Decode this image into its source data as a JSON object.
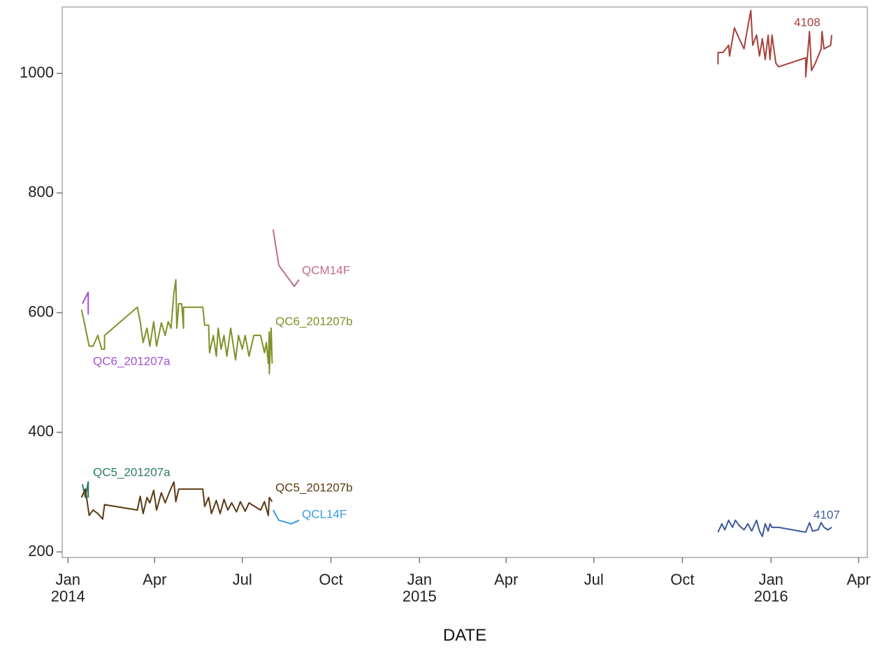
{
  "chart_data": {
    "type": "line",
    "x_label": "DATE",
    "xlim": [
      "2013-12-26",
      "2016-04-10"
    ],
    "xticks": [
      {
        "value": "2014-01-01",
        "label": "Jan\n2014"
      },
      {
        "value": "2014-04-01",
        "label": "Apr"
      },
      {
        "value": "2014-07-01",
        "label": "Jul"
      },
      {
        "value": "2014-10-01",
        "label": "Oct"
      },
      {
        "value": "2015-01-01",
        "label": "Jan\n2015"
      },
      {
        "value": "2015-04-01",
        "label": "Apr"
      },
      {
        "value": "2015-07-01",
        "label": "Jul"
      },
      {
        "value": "2015-10-01",
        "label": "Oct"
      },
      {
        "value": "2016-01-01",
        "label": "Jan\n2016"
      },
      {
        "value": "2016-04-01",
        "label": "Apr"
      }
    ],
    "ylim": [
      190.7,
      1111
    ],
    "yticks": [
      200,
      400,
      600,
      800,
      1000
    ],
    "grid": false,
    "series": [
      {
        "name": "QC6_201207a",
        "color": "#a64fd1",
        "x": [
          "2014-01-16",
          "2014-01-22",
          "2014-01-22"
        ],
        "values": [
          615,
          634,
          597
        ]
      },
      {
        "name": "QC6_201207b",
        "color": "#7f9128",
        "x": [
          "2014-01-15",
          "2014-01-17",
          "2014-01-23",
          "2014-01-27",
          "2014-02-01",
          "2014-02-05",
          "2014-02-08",
          "2014-02-08",
          "2014-03-14",
          "2014-03-17",
          "2014-03-20",
          "2014-03-24",
          "2014-03-27",
          "2014-03-31",
          "2014-04-03",
          "2014-04-08",
          "2014-04-12",
          "2014-04-15",
          "2014-04-18",
          "2014-04-21",
          "2014-04-23",
          "2014-04-24",
          "2014-04-26",
          "2014-04-29",
          "2014-05-01",
          "2014-05-01",
          "2014-05-21",
          "2014-05-23",
          "2014-05-27",
          "2014-05-28",
          "2014-06-01",
          "2014-06-04",
          "2014-06-06",
          "2014-06-09",
          "2014-06-12",
          "2014-06-15",
          "2014-06-19",
          "2014-06-24",
          "2014-06-27",
          "2014-07-01",
          "2014-07-04",
          "2014-07-08",
          "2014-07-13",
          "2014-07-20",
          "2014-07-24",
          "2014-07-26",
          "2014-07-28",
          "2014-07-29",
          "2014-07-29",
          "2014-07-31",
          "2014-08-01"
        ],
        "values": [
          605,
          591,
          544,
          544,
          562,
          539,
          539,
          562,
          609,
          585,
          550,
          574,
          544,
          585,
          544,
          583,
          562,
          585,
          574,
          632,
          655,
          574,
          615,
          615,
          574,
          609,
          609,
          579,
          579,
          533,
          562,
          527,
          574,
          539,
          562,
          527,
          574,
          521,
          562,
          539,
          562,
          527,
          562,
          562,
          533,
          550,
          515,
          568,
          498,
          574,
          515
        ]
      },
      {
        "name": "QCM14F",
        "color": "#c06c8f",
        "x": [
          "2014-08-02",
          "2014-08-08",
          "2014-08-24",
          "2014-08-29"
        ],
        "values": [
          739,
          679,
          644,
          655
        ]
      },
      {
        "name": "QC5_201207a",
        "color": "#2a7a6a",
        "x": [
          "2014-01-16",
          "2014-01-19",
          "2014-01-22",
          "2014-01-22"
        ],
        "values": [
          313,
          291,
          317,
          291
        ]
      },
      {
        "name": "QC5_201207b",
        "color": "#5a3a12",
        "x": [
          "2014-01-15",
          "2014-01-19",
          "2014-01-23",
          "2014-01-27",
          "2014-02-01",
          "2014-02-06",
          "2014-02-08",
          "2014-03-14",
          "2014-03-17",
          "2014-03-20",
          "2014-03-24",
          "2014-03-27",
          "2014-03-31",
          "2014-04-03",
          "2014-04-08",
          "2014-04-12",
          "2014-04-16",
          "2014-04-21",
          "2014-04-23",
          "2014-04-26",
          "2014-04-29",
          "2014-05-21",
          "2014-05-23",
          "2014-05-27",
          "2014-05-30",
          "2014-06-04",
          "2014-06-08",
          "2014-06-12",
          "2014-06-16",
          "2014-06-20",
          "2014-06-25",
          "2014-06-29",
          "2014-07-04",
          "2014-07-08",
          "2014-07-14",
          "2014-07-20",
          "2014-07-24",
          "2014-07-28",
          "2014-07-29",
          "2014-08-01"
        ],
        "values": [
          291,
          305,
          261,
          270,
          264,
          255,
          279,
          270,
          293,
          264,
          291,
          282,
          303,
          270,
          299,
          282,
          299,
          317,
          284,
          305,
          305,
          305,
          276,
          291,
          264,
          286,
          264,
          288,
          270,
          282,
          267,
          284,
          268,
          282,
          276,
          270,
          284,
          261,
          291,
          284
        ]
      },
      {
        "name": "QCL14F",
        "color": "#3a9ae0",
        "x": [
          "2014-08-02",
          "2014-08-08",
          "2014-08-21",
          "2014-08-29"
        ],
        "values": [
          270,
          253,
          247,
          253
        ]
      },
      {
        "name": "4108",
        "color": "#a8403a",
        "x": [
          "2015-11-07",
          "2015-11-07",
          "2015-11-12",
          "2015-11-18",
          "2015-11-19",
          "2015-11-24",
          "2015-11-29",
          "2015-12-04",
          "2015-12-07",
          "2015-12-11",
          "2015-12-13",
          "2015-12-17",
          "2015-12-20",
          "2015-12-23",
          "2015-12-26",
          "2015-12-29",
          "2015-12-31",
          "2016-01-02",
          "2016-01-06",
          "2016-01-09",
          "2016-02-06",
          "2016-02-06",
          "2016-02-10",
          "2016-02-12",
          "2016-02-16",
          "2016-02-22",
          "2016-02-23",
          "2016-02-25",
          "2016-03-03",
          "2016-03-04"
        ],
        "values": [
          1015,
          1035,
          1035,
          1047,
          1029,
          1076,
          1058,
          1041,
          1070,
          1105,
          1047,
          1064,
          1029,
          1058,
          1023,
          1064,
          1023,
          1064,
          1017,
          1011,
          1026,
          994,
          1070,
          1005,
          1017,
          1041,
          1070,
          1041,
          1047,
          1064
        ]
      },
      {
        "name": "4107",
        "color": "#3d5a9a",
        "x": [
          "2015-11-07",
          "2015-11-11",
          "2015-11-14",
          "2015-11-18",
          "2015-11-22",
          "2015-11-25",
          "2015-11-29",
          "2015-12-04",
          "2015-12-08",
          "2015-12-12",
          "2015-12-17",
          "2015-12-20",
          "2015-12-23",
          "2015-12-26",
          "2015-12-29",
          "2015-12-31",
          "2016-01-02",
          "2016-01-09",
          "2016-02-06",
          "2016-02-10",
          "2016-02-13",
          "2016-02-19",
          "2016-02-22",
          "2016-02-25",
          "2016-02-29",
          "2016-03-04"
        ],
        "values": [
          233,
          247,
          237,
          253,
          241,
          253,
          244,
          237,
          247,
          235,
          253,
          235,
          226,
          247,
          235,
          247,
          241,
          241,
          233,
          249,
          235,
          237,
          249,
          241,
          237,
          241
        ]
      }
    ]
  }
}
